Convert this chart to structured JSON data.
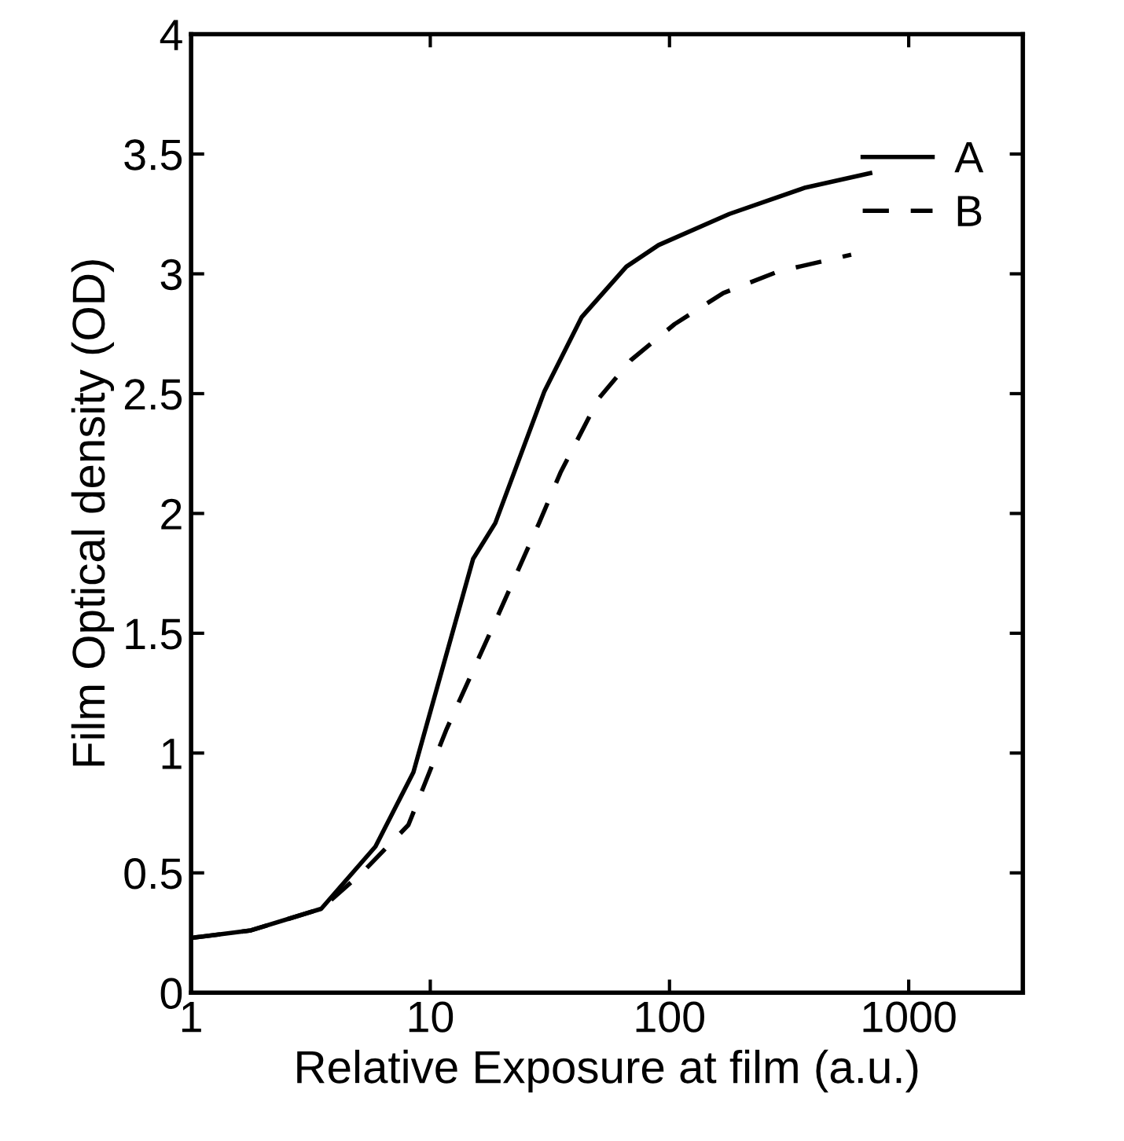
{
  "chart_data": {
    "type": "line",
    "xlabel": "Relative Exposure at film (a.u.)",
    "ylabel": "Film Optical density (OD)",
    "log": "x",
    "xlim": [
      1,
      3000
    ],
    "xticks": [
      1,
      10,
      100,
      1000
    ],
    "ylim": [
      0,
      4
    ],
    "yticks": [
      0,
      0.5,
      1,
      1.5,
      2,
      2.5,
      3,
      3.5,
      4
    ],
    "grid": false,
    "legend": "top right",
    "series": [
      {
        "name": "A",
        "color": "#000000",
        "line_style": "solid",
        "x": [
          1.03,
          1.78,
          3.5,
          5.9,
          8.5,
          15.1,
          18.7,
          30,
          43,
          66,
          90,
          178,
          370,
          690
        ],
        "values": [
          0.23,
          0.26,
          0.35,
          0.61,
          0.92,
          1.81,
          1.96,
          2.51,
          2.82,
          3.03,
          3.12,
          3.25,
          3.36,
          3.42
        ]
      },
      {
        "name": "B",
        "color": "#000000",
        "line_style": "dashed",
        "x": [
          1.03,
          1.78,
          3.5,
          5.3,
          8.1,
          11.7,
          18.7,
          28.5,
          35,
          50.6,
          69,
          105,
          168,
          285,
          575
        ],
        "values": [
          0.23,
          0.26,
          0.35,
          0.51,
          0.7,
          1.1,
          1.55,
          1.96,
          2.17,
          2.48,
          2.64,
          2.79,
          2.92,
          3.01,
          3.08
        ]
      }
    ]
  }
}
